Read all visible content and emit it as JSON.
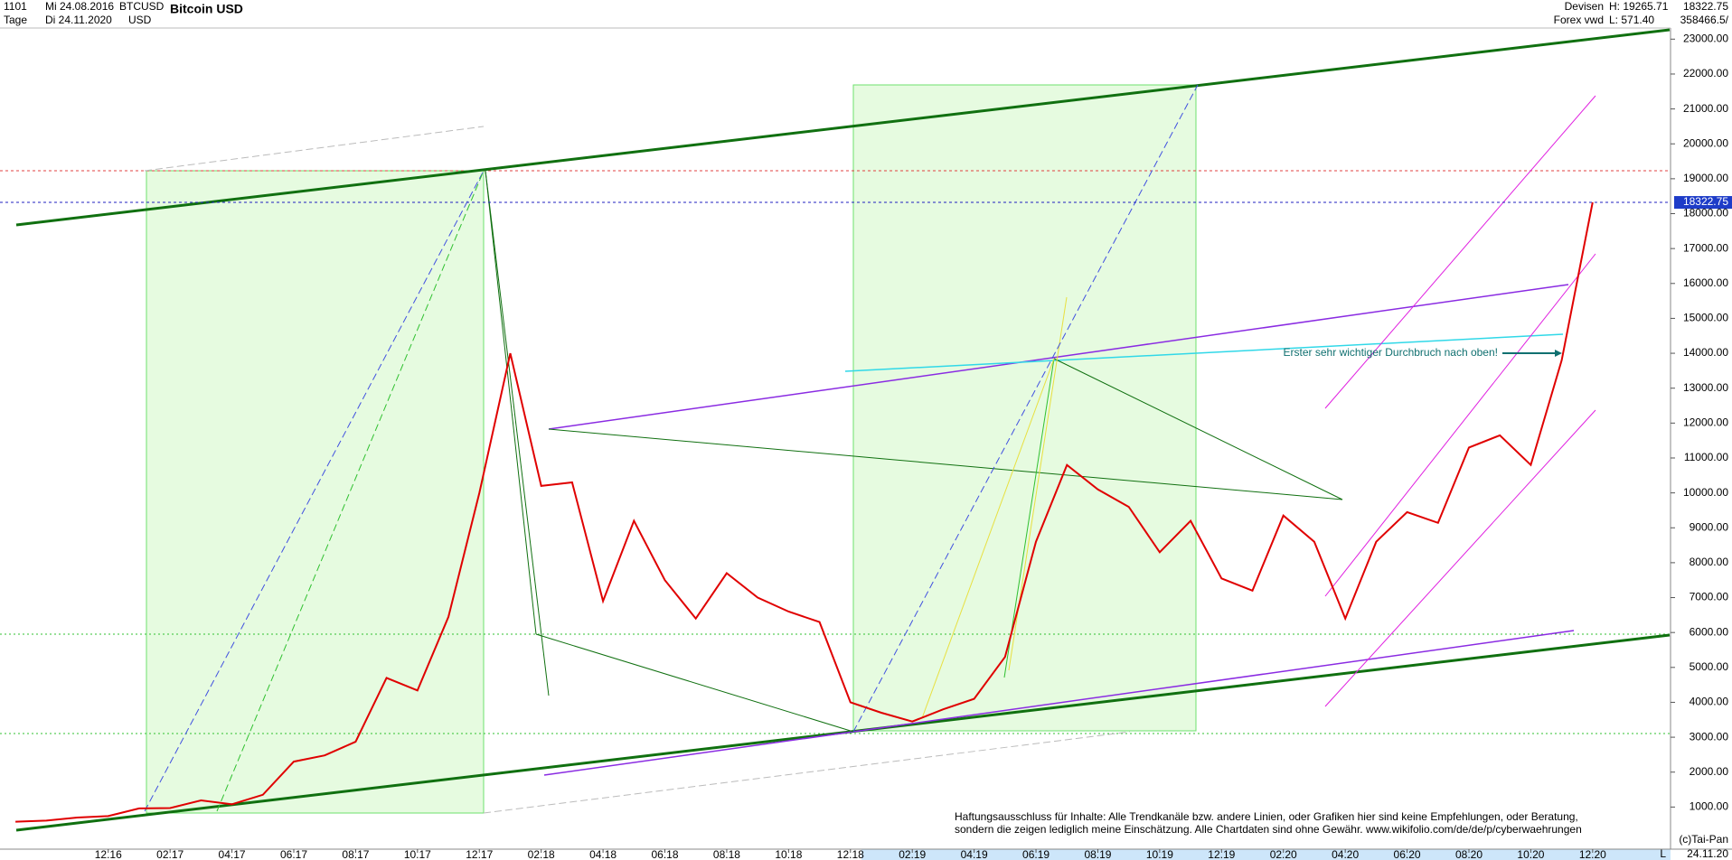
{
  "header": {
    "number": "1101",
    "start": "Mi 24.08.2016",
    "period": "Tage",
    "end": "Di 24.11.2020",
    "symbol": "BTCUSD",
    "currency": "USD",
    "title": "Bitcoin USD",
    "market": "Devisen",
    "source": "Forex vwd",
    "high": "H: 19265.71",
    "low": "L: 571.40",
    "volume": "358466.5/"
  },
  "chart_data": {
    "type": "line",
    "color": "#e00000",
    "categories": [
      null,
      null,
      null,
      "12.16",
      null,
      "02.17",
      null,
      "04.17",
      null,
      "06.17",
      null,
      "08.17",
      null,
      "10.17",
      null,
      "12.17",
      null,
      "02.18",
      null,
      "04.18",
      null,
      "06.18",
      null,
      "08.18",
      null,
      "10.18",
      null,
      "12.18",
      null,
      "02.19",
      null,
      "04.19",
      null,
      "06.19",
      null,
      "08.19",
      null,
      "10.19",
      null,
      "12.19",
      null,
      "02.20",
      null,
      "04.20",
      null,
      "06.20",
      null,
      "08.20",
      null,
      "10.20",
      null,
      "12.20"
    ],
    "values": [
      580,
      610,
      700,
      740,
      960,
      970,
      1190,
      1080,
      1350,
      2300,
      2480,
      2870,
      4700,
      4340,
      6450,
      10000,
      14000,
      10200,
      10300,
      6900,
      9200,
      7500,
      6400,
      7700,
      7000,
      6600,
      6300,
      4000,
      3700,
      3450,
      3800,
      4100,
      5300,
      8600,
      10800,
      10100,
      9600,
      8300,
      9200,
      7550,
      7200,
      9350,
      8600,
      6400,
      8600,
      9450,
      9140,
      11300,
      11650,
      10800,
      13800,
      18322.75
    ],
    "ylim": [
      0,
      23500
    ],
    "yticks": [
      {
        "value": 1000,
        "label": "1000.00"
      },
      {
        "value": 2000,
        "label": "2000.00"
      },
      {
        "value": 3000,
        "label": "3000.00"
      },
      {
        "value": 4000,
        "label": "4000.00"
      },
      {
        "value": 5000,
        "label": "5000.00"
      },
      {
        "value": 6000,
        "label": "6000.00"
      },
      {
        "value": 7000,
        "label": "7000.00"
      },
      {
        "value": 8000,
        "label": "8000.00"
      },
      {
        "value": 9000,
        "label": "9000.00"
      },
      {
        "value": 10000,
        "label": "10000.00"
      },
      {
        "value": 11000,
        "label": "11000.00"
      },
      {
        "value": 12000,
        "label": "12000.00"
      },
      {
        "value": 13000,
        "label": "13000.00"
      },
      {
        "value": 14000,
        "label": "14000.00"
      },
      {
        "value": 15000,
        "label": "15000.00"
      },
      {
        "value": 16000,
        "label": "16000.00"
      },
      {
        "value": 17000,
        "label": "17000.00"
      },
      {
        "value": 18000,
        "label": "18000.00"
      },
      {
        "value": 19000,
        "label": "19000.00"
      },
      {
        "value": 20000,
        "label": "20000.00"
      },
      {
        "value": 21000,
        "label": "21000.00"
      },
      {
        "value": 22000,
        "label": "22000.00"
      },
      {
        "value": 23000,
        "label": "23000.00"
      }
    ],
    "grid": false,
    "annotation": "Erster sehr wichtiger Durchbruch nach oben!",
    "disclaimer": [
      "Haftungsausschluss für Inhalte: Alle Trendkanäle bzw. andere Linien, oder Grafiken hier sind keine Empfehlungen, oder Beratung,",
      "sondern die zeigen lediglich meine  Einschätzung. Alle Chartdaten sind ohne Gewähr.  www.wikifolio.com/de/de/p/cyberwaehrungen"
    ],
    "copyright": "(c)Tai-Pan",
    "last_date": "24.11.20",
    "scale_mode": "L"
  }
}
